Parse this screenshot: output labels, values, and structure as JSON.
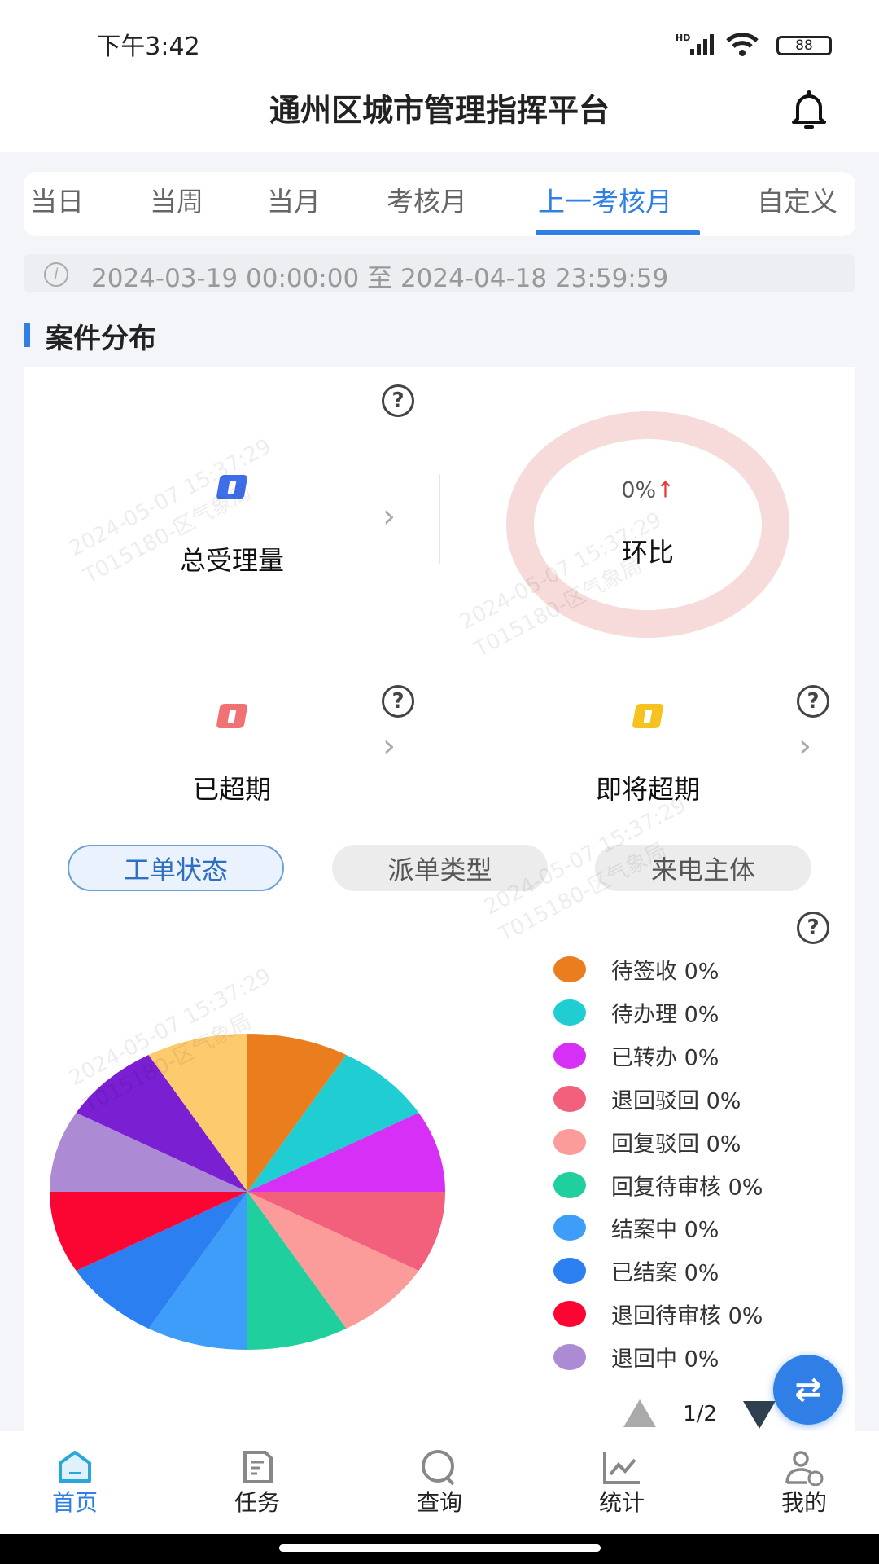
{
  "status_bar": {
    "time": "下午3:42",
    "network": "HD",
    "battery": "88"
  },
  "header": {
    "title": "通州区城市管理指挥平台",
    "icon": "bell-icon"
  },
  "tabs": [
    {
      "label": "当日"
    },
    {
      "label": "当周"
    },
    {
      "label": "当月"
    },
    {
      "label": "考核月"
    },
    {
      "label": "上一考核月",
      "active": true
    },
    {
      "label": "自定义"
    }
  ],
  "date_range": "2024-03-19 00:00:00 至 2024-04-18 23:59:59",
  "section_title": "案件分布",
  "stats": {
    "total": {
      "label": "总受理量",
      "color": "#3f6fe8"
    },
    "ratio": {
      "value": "0%",
      "arrow": "↑",
      "label": "环比"
    },
    "overdue": {
      "label": "已超期",
      "color": "#f07272"
    },
    "near_overdue": {
      "label": "即将超期",
      "color": "#f6c21f"
    }
  },
  "segments": [
    {
      "label": "工单状态",
      "active": true
    },
    {
      "label": "派单类型"
    },
    {
      "label": "来电主体"
    }
  ],
  "chart_data": {
    "type": "pie",
    "legend": [
      {
        "name": "待签收",
        "value": "0%",
        "color": "#ea7e1f"
      },
      {
        "name": "待办理",
        "value": "0%",
        "color": "#1fcdd3"
      },
      {
        "name": "已转办",
        "value": "0%",
        "color": "#d62ff5"
      },
      {
        "name": "退回驳回",
        "value": "0%",
        "color": "#f2607c"
      },
      {
        "name": "回复驳回",
        "value": "0%",
        "color": "#fb9c9a"
      },
      {
        "name": "回复待审核",
        "value": "0%",
        "color": "#1fcf9d"
      },
      {
        "name": "结案中",
        "value": "0%",
        "color": "#3d9df8"
      },
      {
        "name": "已结案",
        "value": "0%",
        "color": "#2b7ff1"
      },
      {
        "name": "退回待审核",
        "value": "0%",
        "color": "#fb0533"
      },
      {
        "name": "退回中",
        "value": "0%",
        "color": "#ad8ad4"
      }
    ],
    "slice_colors": [
      "#ea7e1f",
      "#1fcdd3",
      "#d62ff5",
      "#f2607c",
      "#fb9c9a",
      "#1fcf9d",
      "#3d9df8",
      "#2b7ff1",
      "#fb0533",
      "#ad8ad4",
      "#7a1fd2",
      "#fdcb6e"
    ],
    "legend_page": "1/2",
    "legend_placement": "right"
  },
  "nav": [
    {
      "label": "首页",
      "icon": "home-icon",
      "active": true
    },
    {
      "label": "任务",
      "icon": "task-icon"
    },
    {
      "label": "查询",
      "icon": "search-icon"
    },
    {
      "label": "统计",
      "icon": "chart-icon"
    },
    {
      "label": "我的",
      "icon": "user-icon"
    }
  ],
  "watermark": [
    "2024-05-07 15:37:29",
    "T015180-区气象局"
  ],
  "colors": {
    "accent": "#2f7fe6"
  }
}
